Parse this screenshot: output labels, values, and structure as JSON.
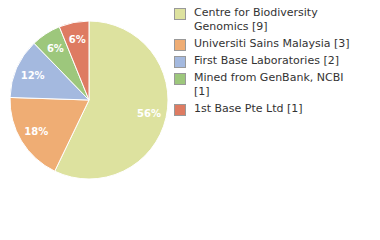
{
  "chart_data": {
    "type": "pie",
    "categories": [
      "Centre for Biodiversity Genomics [9]",
      "Universiti Sains Malaysia [3]",
      "First Base Laboratories [2]",
      "Mined from GenBank, NCBI [1]",
      "1st Base Pte Ltd [1]"
    ],
    "values": [
      56,
      18,
      12,
      6,
      6
    ],
    "value_labels": [
      "56%",
      "18%",
      "12%",
      "6%",
      "6%"
    ],
    "colors": [
      "#dde29f",
      "#efad74",
      "#a4b9df",
      "#9dc77c",
      "#de7b62"
    ],
    "data_labels": true,
    "legend": "right"
  }
}
